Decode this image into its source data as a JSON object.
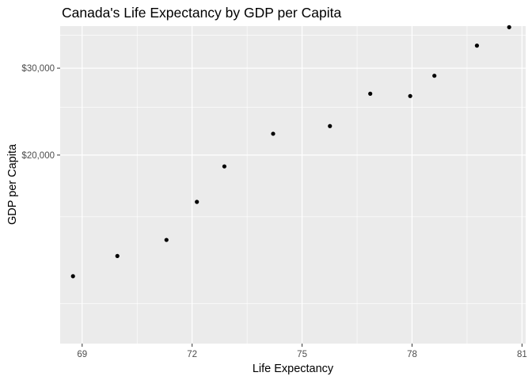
{
  "chart_data": {
    "type": "scatter",
    "title": "Canada's Life Expectancy by GDP per Capita",
    "xlabel": "Life Expectancy",
    "ylabel": "GDP per Capita",
    "xlim": [
      68.4,
      81.1
    ],
    "ylim": [
      8300,
      36500
    ],
    "x_ticks": [
      69,
      72,
      75,
      78,
      81
    ],
    "x_tick_labels": [
      "69",
      "72",
      "75",
      "78",
      "81"
    ],
    "x_minor_ticks": [
      70.5,
      73.5,
      76.5,
      79.5
    ],
    "y_ticks": [
      20000,
      30000
    ],
    "y_tick_labels": [
      "$20,000",
      "$30,000"
    ],
    "y_minor_ticks": [
      10000,
      15000,
      25000,
      35000
    ],
    "log_y": true,
    "grid": true,
    "point_color": "#000000",
    "points": [
      {
        "x": 68.75,
        "y": 11367
      },
      {
        "x": 69.96,
        "y": 12490
      },
      {
        "x": 71.3,
        "y": 13462
      },
      {
        "x": 72.13,
        "y": 16077
      },
      {
        "x": 72.88,
        "y": 18971
      },
      {
        "x": 74.21,
        "y": 22091
      },
      {
        "x": 75.76,
        "y": 22899
      },
      {
        "x": 76.86,
        "y": 26627
      },
      {
        "x": 77.95,
        "y": 26343
      },
      {
        "x": 78.61,
        "y": 28955
      },
      {
        "x": 79.77,
        "y": 33329
      },
      {
        "x": 80.65,
        "y": 36319
      }
    ]
  }
}
